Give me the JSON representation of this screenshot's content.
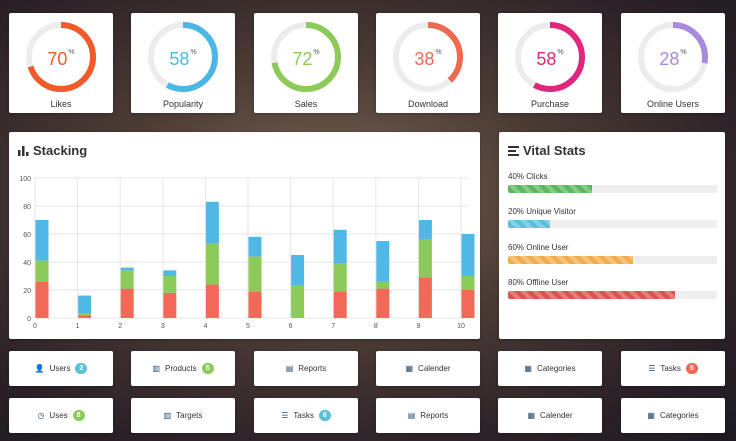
{
  "gauges": [
    {
      "label": "Likes",
      "value": 70,
      "unit": "%",
      "color": "#f15a29"
    },
    {
      "label": "Popularity",
      "value": 58,
      "unit": "%",
      "color": "#4bb7e4"
    },
    {
      "label": "Sales",
      "value": 72,
      "unit": "%",
      "color": "#8cca5a"
    },
    {
      "label": "Download",
      "value": 38,
      "unit": "%",
      "color": "#f0684f"
    },
    {
      "label": "Purchase",
      "value": 58,
      "unit": "%",
      "color": "#e0267d"
    },
    {
      "label": "Online Users",
      "value": 28,
      "unit": "%",
      "color": "#a98ade"
    }
  ],
  "stacking": {
    "title": "Stacking",
    "icon": "bar-chart-icon"
  },
  "chart_data": {
    "type": "bar",
    "stacked": true,
    "title": "Stacking",
    "categories": [
      "0",
      "1",
      "2",
      "3",
      "4",
      "5",
      "6",
      "7",
      "8",
      "9",
      "10"
    ],
    "series": [
      {
        "name": "red",
        "color": "#f26a57",
        "values": [
          26,
          2,
          21,
          18,
          24,
          19,
          0,
          19,
          21,
          29,
          20
        ]
      },
      {
        "name": "green",
        "color": "#8cca5a",
        "values": [
          15,
          1,
          13,
          12,
          29,
          25,
          23,
          20,
          5,
          27,
          10
        ]
      },
      {
        "name": "blue",
        "color": "#50b8e6",
        "values": [
          29,
          13,
          2,
          4,
          30,
          14,
          22,
          24,
          29,
          14,
          30
        ]
      }
    ],
    "ylim": [
      0,
      100
    ],
    "yticks": [
      0,
      20,
      40,
      60,
      80,
      100
    ],
    "xlabel": "",
    "ylabel": "",
    "grid": true
  },
  "vital": {
    "title": "Vital Stats",
    "icon": "list-icon",
    "stats": [
      {
        "label": "40% Clicks",
        "value": 40,
        "color": "#5cb85c"
      },
      {
        "label": "20% Unique Visitor",
        "value": 20,
        "color": "#5bc0de"
      },
      {
        "label": "60% Online User",
        "value": 60,
        "color": "#f0ad4e"
      },
      {
        "label": "80% Offline User",
        "value": 80,
        "color": "#d9534f"
      }
    ]
  },
  "buttons_row1": [
    {
      "label": "Users",
      "icon": "user-icon",
      "glyph": "👤",
      "badge": "2",
      "badge_color": "#5bc0de"
    },
    {
      "label": "Products",
      "icon": "columns-icon",
      "glyph": "▥",
      "badge": "5",
      "badge_color": "#8cca5a"
    },
    {
      "label": "Reports",
      "icon": "document-icon",
      "glyph": "▤",
      "badge": null
    },
    {
      "label": "Calender",
      "icon": "calendar-icon",
      "glyph": "▦",
      "badge": null
    },
    {
      "label": "Categories",
      "icon": "grid-icon",
      "glyph": "▦",
      "badge": null
    },
    {
      "label": "Tasks",
      "icon": "tasks-icon",
      "glyph": "☰",
      "badge": "5",
      "badge_color": "#f0684f"
    }
  ],
  "buttons_row2": [
    {
      "label": "Uses",
      "icon": "clock-icon",
      "glyph": "◷",
      "badge": "8",
      "badge_color": "#8cca5a"
    },
    {
      "label": "Targets",
      "icon": "columns-icon",
      "glyph": "▥",
      "badge": null
    },
    {
      "label": "Tasks",
      "icon": "tasks-icon",
      "glyph": "☰",
      "badge": "6",
      "badge_color": "#5bc0de"
    },
    {
      "label": "Reports",
      "icon": "document-icon",
      "glyph": "▤",
      "badge": null
    },
    {
      "label": "Calender",
      "icon": "calendar-icon",
      "glyph": "▦",
      "badge": null
    },
    {
      "label": "Categories",
      "icon": "grid-icon",
      "glyph": "▦",
      "badge": null
    }
  ]
}
